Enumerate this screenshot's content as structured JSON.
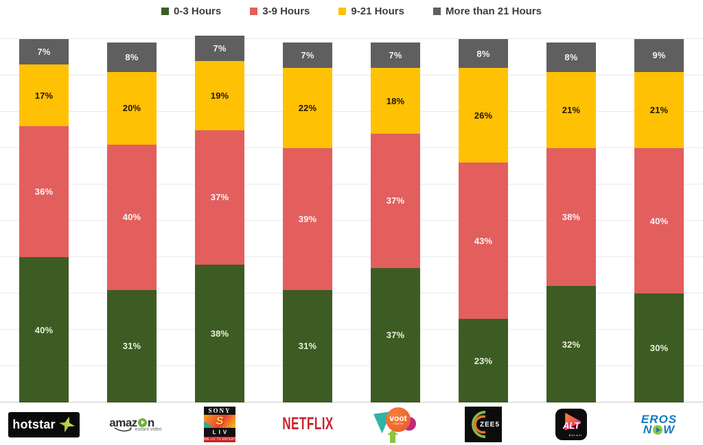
{
  "legend": [
    {
      "label": "0-3 Hours",
      "color": "#3d5c24"
    },
    {
      "label": "3-9 Hours",
      "color": "#e25f5e"
    },
    {
      "label": "9-21 Hours",
      "color": "#ffc103"
    },
    {
      "label": "More than 21 Hours",
      "color": "#5f5f5f"
    }
  ],
  "chart_data": {
    "type": "bar",
    "stacked": true,
    "orientation": "vertical",
    "categories": [
      "Hotstar",
      "Amazon Instant Video",
      "Sony LIV",
      "Netflix",
      "Voot",
      "ZEE5",
      "ALT Balaji",
      "Eros Now"
    ],
    "series": [
      {
        "name": "0-3 Hours",
        "color": "#3d5c24",
        "label_color": "#e9f0e0",
        "values": [
          40,
          31,
          38,
          31,
          37,
          23,
          32,
          30
        ]
      },
      {
        "name": "3-9 Hours",
        "color": "#e25f5e",
        "label_color": "#fdf4f4",
        "values": [
          36,
          40,
          37,
          39,
          37,
          43,
          38,
          40
        ]
      },
      {
        "name": "9-21 Hours",
        "color": "#ffc103",
        "label_color": "#231403",
        "values": [
          17,
          20,
          19,
          22,
          18,
          26,
          21,
          21
        ]
      },
      {
        "name": "More than 21 Hours",
        "color": "#5f5f5f",
        "label_color": "#f2f2f2",
        "values": [
          7,
          8,
          7,
          7,
          7,
          8,
          8,
          9
        ]
      }
    ],
    "value_suffix": "%",
    "ylim": [
      0,
      100
    ],
    "grid": true,
    "grid_step": 10,
    "legend_position": "top",
    "xlabel": "",
    "ylabel": "",
    "title": ""
  },
  "logos": {
    "hotstar": {
      "text": "hotstar"
    },
    "amazon": {
      "pre": "amaz",
      "post": "n",
      "sub": "instant video"
    },
    "sonyliv": {
      "brand": "SONY",
      "s": "S",
      "liv": "LIV",
      "tagline": "WE LIV TO ENTERTAIN"
    },
    "netflix": {
      "text": "NETFLIX"
    },
    "voot": {
      "text": "voot",
      "sub": "originals"
    },
    "zee5": {
      "text": "ZEE5"
    },
    "altbalaji": {
      "alt": "ALT",
      "balaji": "BALAJI"
    },
    "erosnow": {
      "line1": "EROS",
      "n": "N",
      "w": "W"
    }
  }
}
